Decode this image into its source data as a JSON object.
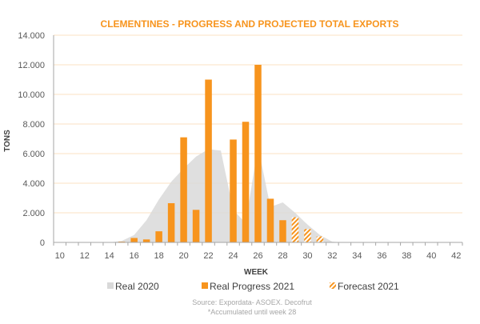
{
  "chart_data": {
    "type": "bar",
    "title": "CLEMENTINES - PROGRESS AND PROJECTED TOTAL EXPORTS",
    "xlabel": "WEEK",
    "ylabel": "TONS",
    "xlim": [
      10,
      42
    ],
    "ylim": [
      0,
      14000
    ],
    "x_ticks": [
      10,
      12,
      14,
      16,
      18,
      20,
      22,
      24,
      26,
      28,
      30,
      32,
      34,
      36,
      38,
      40,
      42
    ],
    "y_ticks": [
      0,
      2000,
      4000,
      6000,
      8000,
      10000,
      12000,
      14000
    ],
    "y_tick_labels": [
      "0",
      "2.000",
      "4.000",
      "6.000",
      "8.000",
      "10.000",
      "12.000",
      "14.000"
    ],
    "grid": true,
    "legend_position": "bottom",
    "series": [
      {
        "name": "Real 2020",
        "type": "area",
        "color": "#d9d9d9",
        "x": [
          10,
          11,
          12,
          13,
          14,
          15,
          16,
          17,
          18,
          19,
          20,
          21,
          22,
          23,
          24,
          25,
          26,
          27,
          28,
          29,
          30,
          31,
          32,
          33,
          34,
          35,
          36,
          37,
          38,
          39,
          40,
          41,
          42
        ],
        "values": [
          0,
          0,
          0,
          0,
          0,
          100,
          500,
          1500,
          2900,
          4100,
          5000,
          5800,
          6300,
          6200,
          2200,
          1300,
          6500,
          2400,
          2700,
          2000,
          1200,
          500,
          50,
          0,
          0,
          0,
          0,
          0,
          0,
          0,
          0,
          0,
          0
        ]
      },
      {
        "name": "Real Progress 2021",
        "type": "bar",
        "color": "#f7941d",
        "x": [
          15,
          16,
          17,
          18,
          19,
          20,
          21,
          22,
          23,
          24,
          25,
          26,
          27,
          28
        ],
        "values": [
          50,
          300,
          200,
          750,
          2650,
          7100,
          2200,
          11000,
          0,
          6950,
          8150,
          12000,
          2950,
          1500
        ]
      },
      {
        "name": "Forecast 2021",
        "type": "bar",
        "pattern": "hatched",
        "color": "#f7941d",
        "x": [
          29,
          30,
          31
        ],
        "values": [
          1700,
          900,
          400
        ]
      }
    ],
    "annotations": [
      "Source: Expordata- ASOEX. Decofrut",
      "*Accumulated until week 28"
    ]
  }
}
